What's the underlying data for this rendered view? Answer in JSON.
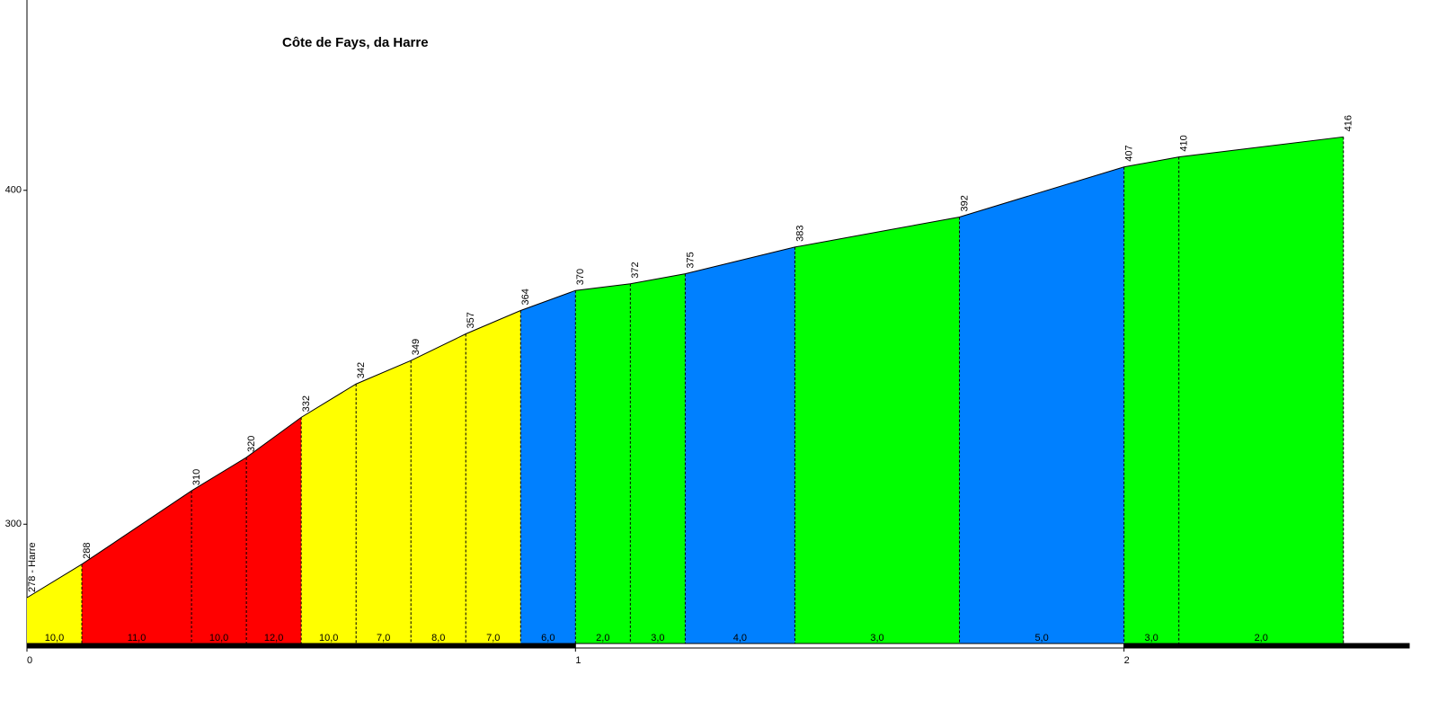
{
  "chart_data": {
    "type": "profile",
    "title": "Côte de Fays, da Harre",
    "x": [
      0,
      0.1,
      0.3,
      0.4,
      0.5,
      0.6,
      0.7,
      0.8,
      0.9,
      1.0,
      1.1,
      1.2,
      1.4,
      1.7,
      2.0,
      2.1,
      2.4
    ],
    "values": [
      278,
      288,
      310,
      320,
      332,
      342,
      349,
      357,
      364,
      370,
      372,
      375,
      383,
      392,
      407,
      410,
      416
    ],
    "value_labels": [
      "278 - Harre",
      "288",
      "310",
      "320",
      "332",
      "342",
      "349",
      "357",
      "364",
      "370",
      "372",
      "375",
      "383",
      "392",
      "407",
      "410",
      "416"
    ],
    "gradients": [
      10,
      11,
      10,
      12,
      10,
      7,
      8,
      7,
      6,
      2,
      3,
      4,
      3,
      5,
      3,
      2
    ],
    "gradient_labels": [
      "10,0",
      "11,0",
      "10,0",
      "12,0",
      "10,0",
      "7,0",
      "8,0",
      "7,0",
      "6,0",
      "2,0",
      "3,0",
      "4,0",
      "3,0",
      "5,0",
      "3,0",
      "2,0"
    ],
    "segment_colors": [
      "#ffff00",
      "#ff0000",
      "#ff0000",
      "#ff0000",
      "#ffff00",
      "#ffff00",
      "#ffff00",
      "#ffff00",
      "#0080ff",
      "#00ff00",
      "#00ff00",
      "#0080ff",
      "#00ff00",
      "#0080ff",
      "#00ff00",
      "#00ff00"
    ],
    "xlim": [
      0,
      2.52
    ],
    "xticks": [
      0,
      1,
      2
    ],
    "ylim": [
      264,
      457
    ],
    "yticks": [
      300,
      400
    ]
  }
}
